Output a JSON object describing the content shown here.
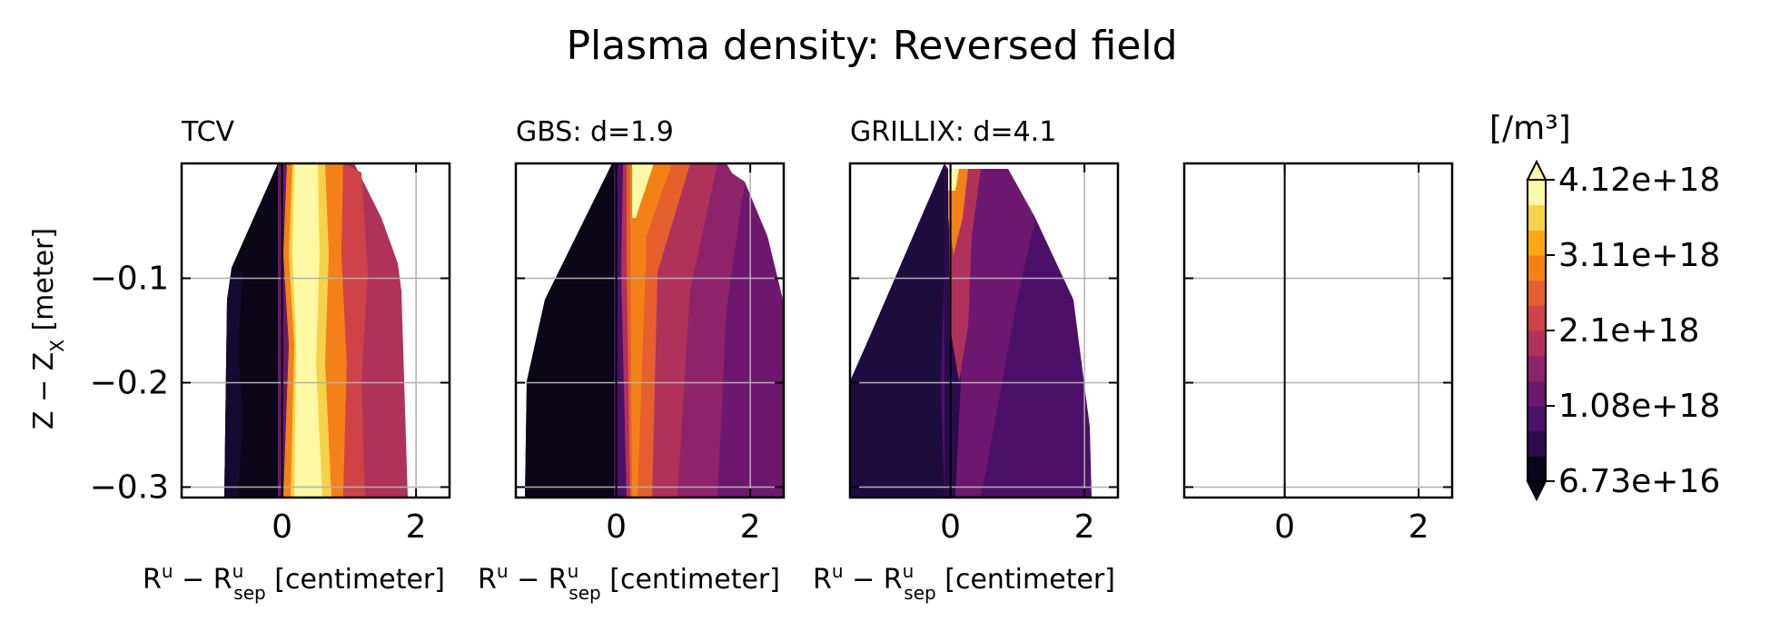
{
  "title": "Plasma density: Reversed field",
  "colors": {
    "colormap": [
      "#0b0618",
      "#2a0c4e",
      "#4d1068",
      "#6d186e",
      "#8f236a",
      "#b0325a",
      "#cd4347",
      "#e5602c",
      "#f48117",
      "#f9a813",
      "#f6d24b",
      "#fcf8a3"
    ],
    "grid": "#b0b0b0",
    "axis": "#000000"
  },
  "chart_data": [
    {
      "type": "heatmap",
      "title": "TCV",
      "xlabel": "R^u - R^u_sep [centimeter]",
      "ylabel": "Z - Z_X [meter]",
      "xlim": [
        -1.5,
        2.5
      ],
      "ylim": [
        -0.31,
        0.01
      ],
      "xticks": [
        "0",
        "2"
      ],
      "yticks": [
        "−0.1",
        "−0.2",
        "−0.3"
      ],
      "grid": true
    },
    {
      "type": "heatmap",
      "title": "GBS: d=1.9",
      "xlabel": "R^u - R^u_sep [centimeter]",
      "xlim": [
        -1.5,
        2.5
      ],
      "ylim": [
        -0.31,
        0.01
      ],
      "xticks": [
        "0",
        "2"
      ],
      "grid": true
    },
    {
      "type": "heatmap",
      "title": "GRILLIX: d=4.1",
      "xlabel": "R^u - R^u_sep [centimeter]",
      "xlim": [
        -1.5,
        2.5
      ],
      "ylim": [
        -0.31,
        0.01
      ],
      "xticks": [
        "0",
        "2"
      ],
      "grid": true
    },
    {
      "type": "heatmap",
      "title": "",
      "xlim": [
        -1.5,
        2.5
      ],
      "ylim": [
        -0.31,
        0.01
      ],
      "xticks": [
        "0",
        "2"
      ],
      "grid": true
    }
  ],
  "colorbar": {
    "unit": "[/m³]",
    "ticks": [
      "4.12e+18",
      "3.11e+18",
      "2.1e+18",
      "1.08e+18",
      "6.73e+16"
    ],
    "extend": "both"
  }
}
